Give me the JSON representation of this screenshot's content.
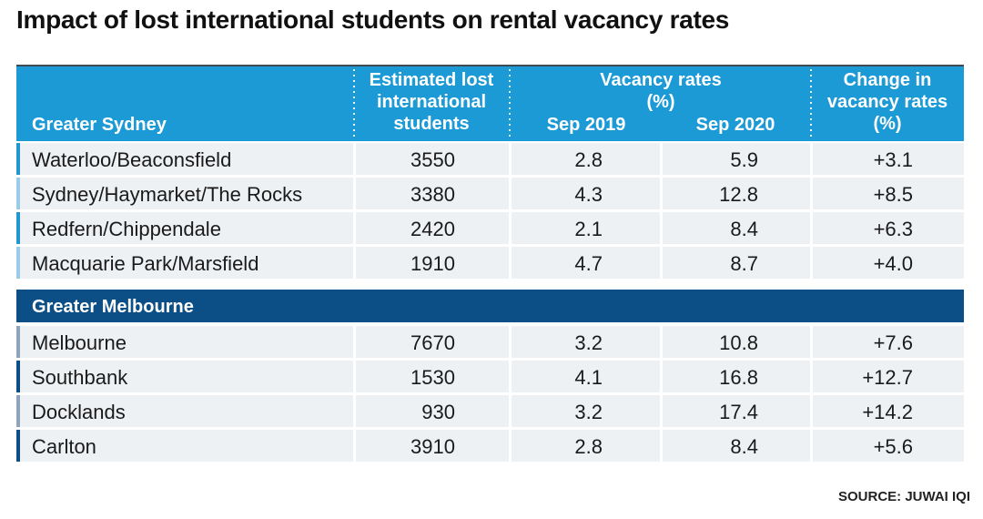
{
  "title": "Impact of lost international students on rental vacancy rates",
  "source": "SOURCE: JUWAI IQI",
  "colors": {
    "sydney_header": "#1c9ad6",
    "melbourne_header": "#0b4f86",
    "row_bg": "#eef1f4",
    "sydney_bar_dark": "#2196d3",
    "sydney_bar_light": "#9ccde8",
    "melbourne_bar_dark": "#0b4f86",
    "melbourne_bar_light": "#8fa3bc"
  },
  "chart_data": {
    "type": "table",
    "columns": {
      "area": "",
      "students": [
        "Estimated lost",
        "international",
        "students"
      ],
      "vacancy_group": [
        "Vacancy rates",
        "(%)"
      ],
      "sep2019": "Sep 2019",
      "sep2020": "Sep 2020",
      "change": [
        "Change in",
        "vacancy rates",
        "(%)"
      ]
    },
    "groups": [
      {
        "name": "Greater Sydney",
        "rows": [
          {
            "area": "Waterloo/Beaconsfield",
            "students": "3550",
            "sep2019": "2.8",
            "sep2020": "5.9",
            "change": "+3.1"
          },
          {
            "area": "Sydney/Haymarket/The Rocks",
            "students": "3380",
            "sep2019": "4.3",
            "sep2020": "12.8",
            "change": "+8.5"
          },
          {
            "area": "Redfern/Chippendale",
            "students": "2420",
            "sep2019": "2.1",
            "sep2020": "8.4",
            "change": "+6.3"
          },
          {
            "area": "Macquarie Park/Marsfield",
            "students": "1910",
            "sep2019": "4.7",
            "sep2020": "8.7",
            "change": "+4.0"
          }
        ]
      },
      {
        "name": "Greater Melbourne",
        "rows": [
          {
            "area": "Melbourne",
            "students": "7670",
            "sep2019": "3.2",
            "sep2020": "10.8",
            "change": "+7.6"
          },
          {
            "area": "Southbank",
            "students": "1530",
            "sep2019": "4.1",
            "sep2020": "16.8",
            "change": "+12.7"
          },
          {
            "area": "Docklands",
            "students": "930",
            "sep2019": "3.2",
            "sep2020": "17.4",
            "change": "+14.2"
          },
          {
            "area": "Carlton",
            "students": "3910",
            "sep2019": "2.8",
            "sep2020": "8.4",
            "change": "+5.6"
          }
        ]
      }
    ]
  }
}
